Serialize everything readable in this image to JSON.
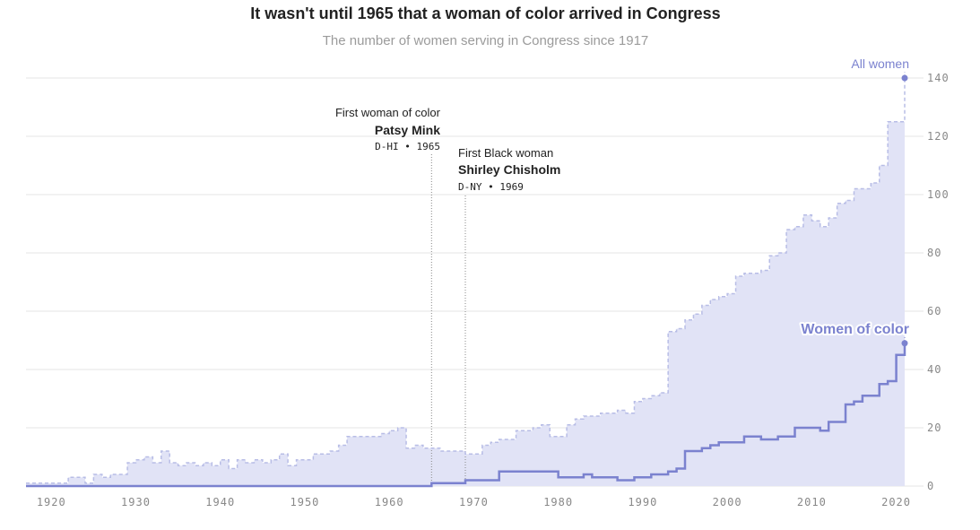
{
  "title": "It wasn't until 1965 that a woman of color arrived in Congress",
  "subtitle": "The number of women serving in Congress since 1917",
  "colors": {
    "area_fill": "#e1e3f6",
    "all_line": "#b8bde6",
    "poc_line": "#7b82cf",
    "grid": "#e6e6e6",
    "annotation_line": "#888888"
  },
  "chart_data": {
    "type": "area",
    "title": "It wasn't until 1965 that a woman of color arrived in Congress",
    "subtitle": "The number of women serving in Congress since 1917",
    "xlabel": "",
    "ylabel": "",
    "xlim": [
      1917,
      2021
    ],
    "ylim": [
      0,
      140
    ],
    "xticks": [
      1920,
      1930,
      1940,
      1950,
      1960,
      1970,
      1980,
      1990,
      2000,
      2010,
      2020
    ],
    "yticks": [
      0,
      20,
      40,
      60,
      80,
      100,
      120,
      140
    ],
    "y_axis_side": "right",
    "grid": true,
    "series": [
      {
        "name": "All women",
        "style": "dashed step",
        "points": [
          [
            1917,
            1
          ],
          [
            1921,
            1
          ],
          [
            1922,
            3
          ],
          [
            1924,
            1
          ],
          [
            1925,
            4
          ],
          [
            1926,
            3
          ],
          [
            1927,
            4
          ],
          [
            1929,
            8
          ],
          [
            1930,
            9
          ],
          [
            1931,
            10
          ],
          [
            1932,
            8
          ],
          [
            1933,
            12
          ],
          [
            1934,
            8
          ],
          [
            1935,
            7
          ],
          [
            1936,
            8
          ],
          [
            1937,
            7
          ],
          [
            1938,
            8
          ],
          [
            1939,
            7
          ],
          [
            1940,
            9
          ],
          [
            1941,
            6
          ],
          [
            1942,
            9
          ],
          [
            1943,
            8
          ],
          [
            1944,
            9
          ],
          [
            1945,
            8
          ],
          [
            1946,
            9
          ],
          [
            1947,
            11
          ],
          [
            1948,
            7
          ],
          [
            1949,
            9
          ],
          [
            1950,
            9
          ],
          [
            1951,
            11
          ],
          [
            1952,
            11
          ],
          [
            1953,
            12
          ],
          [
            1954,
            14
          ],
          [
            1955,
            17
          ],
          [
            1956,
            17
          ],
          [
            1957,
            17
          ],
          [
            1958,
            17
          ],
          [
            1959,
            18
          ],
          [
            1960,
            19
          ],
          [
            1961,
            20
          ],
          [
            1962,
            13
          ],
          [
            1963,
            14
          ],
          [
            1964,
            13
          ],
          [
            1965,
            13
          ],
          [
            1966,
            12
          ],
          [
            1967,
            12
          ],
          [
            1968,
            12
          ],
          [
            1969,
            11
          ],
          [
            1970,
            11
          ],
          [
            1971,
            14
          ],
          [
            1972,
            15
          ],
          [
            1973,
            16
          ],
          [
            1974,
            16
          ],
          [
            1975,
            19
          ],
          [
            1976,
            19
          ],
          [
            1977,
            20
          ],
          [
            1978,
            21
          ],
          [
            1979,
            17
          ],
          [
            1980,
            17
          ],
          [
            1981,
            21
          ],
          [
            1982,
            23
          ],
          [
            1983,
            24
          ],
          [
            1984,
            24
          ],
          [
            1985,
            25
          ],
          [
            1986,
            25
          ],
          [
            1987,
            26
          ],
          [
            1988,
            25
          ],
          [
            1989,
            29
          ],
          [
            1990,
            30
          ],
          [
            1991,
            31
          ],
          [
            1992,
            32
          ],
          [
            1993,
            53
          ],
          [
            1994,
            54
          ],
          [
            1995,
            57
          ],
          [
            1996,
            59
          ],
          [
            1997,
            62
          ],
          [
            1998,
            64
          ],
          [
            1999,
            65
          ],
          [
            2000,
            66
          ],
          [
            2001,
            72
          ],
          [
            2002,
            73
          ],
          [
            2003,
            73
          ],
          [
            2004,
            74
          ],
          [
            2005,
            79
          ],
          [
            2006,
            80
          ],
          [
            2007,
            88
          ],
          [
            2008,
            89
          ],
          [
            2009,
            93
          ],
          [
            2010,
            91
          ],
          [
            2011,
            89
          ],
          [
            2012,
            92
          ],
          [
            2013,
            97
          ],
          [
            2014,
            98
          ],
          [
            2015,
            102
          ],
          [
            2016,
            102
          ],
          [
            2017,
            104
          ],
          [
            2018,
            110
          ],
          [
            2019,
            125
          ],
          [
            2020,
            125
          ],
          [
            2021,
            140
          ]
        ]
      },
      {
        "name": "Women of color",
        "style": "solid step",
        "points": [
          [
            1917,
            0
          ],
          [
            1965,
            1
          ],
          [
            1968,
            1
          ],
          [
            1969,
            2
          ],
          [
            1972,
            2
          ],
          [
            1973,
            5
          ],
          [
            1979,
            5
          ],
          [
            1980,
            3
          ],
          [
            1982,
            3
          ],
          [
            1983,
            4
          ],
          [
            1984,
            3
          ],
          [
            1986,
            3
          ],
          [
            1987,
            2
          ],
          [
            1989,
            3
          ],
          [
            1990,
            3
          ],
          [
            1991,
            4
          ],
          [
            1993,
            5
          ],
          [
            1994,
            6
          ],
          [
            1995,
            12
          ],
          [
            1997,
            13
          ],
          [
            1998,
            14
          ],
          [
            1999,
            15
          ],
          [
            2001,
            15
          ],
          [
            2002,
            17
          ],
          [
            2003,
            17
          ],
          [
            2004,
            16
          ],
          [
            2006,
            17
          ],
          [
            2007,
            17
          ],
          [
            2008,
            20
          ],
          [
            2010,
            20
          ],
          [
            2011,
            19
          ],
          [
            2012,
            22
          ],
          [
            2013,
            22
          ],
          [
            2014,
            28
          ],
          [
            2015,
            29
          ],
          [
            2016,
            31
          ],
          [
            2017,
            31
          ],
          [
            2018,
            35
          ],
          [
            2019,
            36
          ],
          [
            2020,
            45
          ],
          [
            2021,
            49
          ]
        ],
        "last_point": [
          2021,
          49
        ]
      }
    ],
    "annotations": [
      {
        "label": "First woman of color",
        "name": "Patsy Mink",
        "meta": "D-HI • 1965",
        "year": 1965,
        "anchor": "end"
      },
      {
        "label": "First Black woman",
        "name": "Shirley Chisholm",
        "meta": "D-NY • 1969",
        "year": 1969,
        "anchor": "start"
      }
    ],
    "series_labels": {
      "all": "All women",
      "poc": "Women of color"
    }
  }
}
